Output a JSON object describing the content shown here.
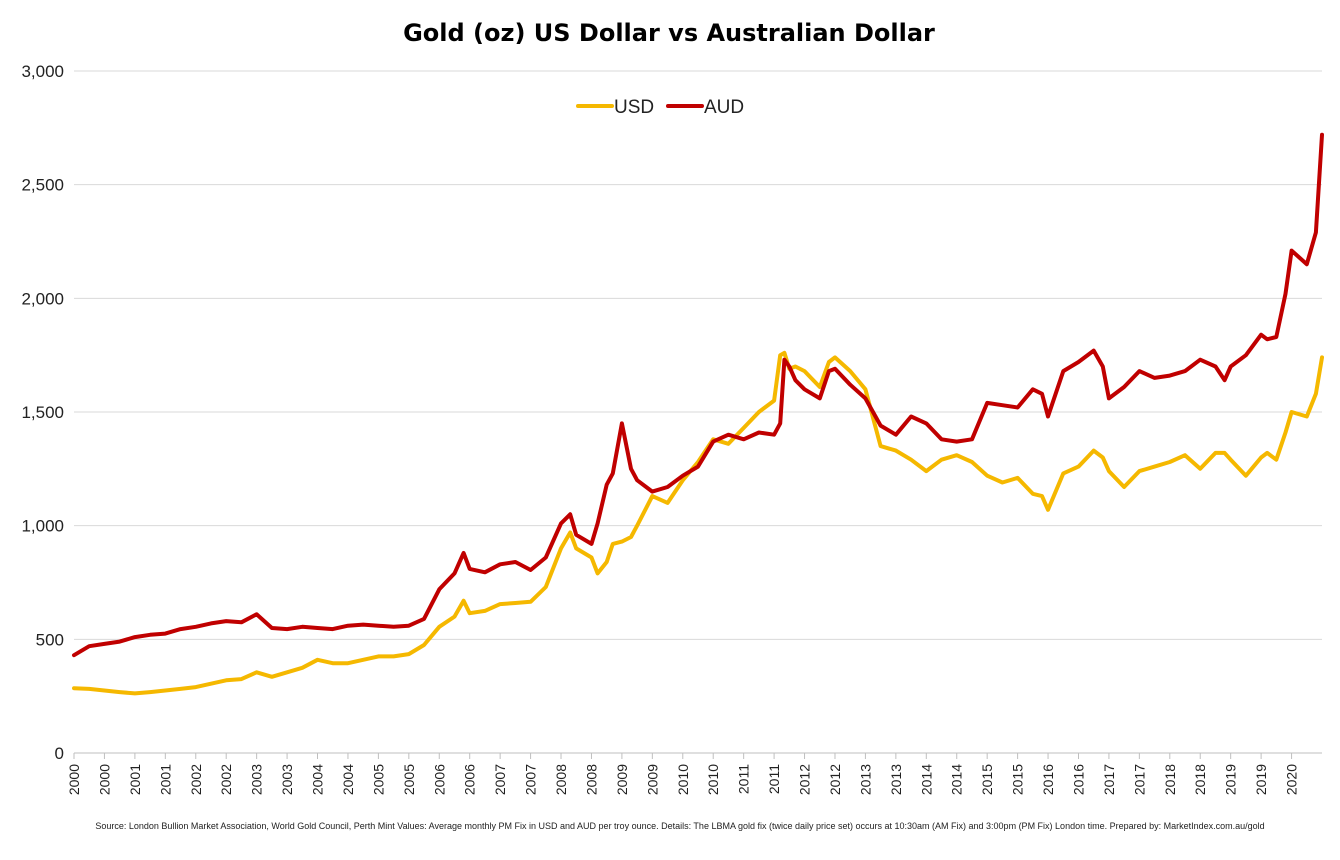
{
  "chart_data": {
    "type": "line",
    "title": "Gold (oz) US Dollar vs Australian Dollar",
    "xlabel": "",
    "ylabel": "",
    "ylim": [
      0,
      3000
    ],
    "yticks": [
      "0",
      "500",
      "1,000",
      "1,500",
      "2,000",
      "2,500",
      "3,000"
    ],
    "ytick_values": [
      0,
      500,
      1000,
      1500,
      2000,
      2500,
      3000
    ],
    "xticks": [
      "2000",
      "2000",
      "2001",
      "2001",
      "2002",
      "2002",
      "2003",
      "2003",
      "2004",
      "2004",
      "2005",
      "2005",
      "2006",
      "2006",
      "2007",
      "2007",
      "2008",
      "2008",
      "2009",
      "2009",
      "2010",
      "2010",
      "2011",
      "2011",
      "2012",
      "2012",
      "2013",
      "2013",
      "2014",
      "2014",
      "2015",
      "2015",
      "2016",
      "2016",
      "2017",
      "2017",
      "2018",
      "2018",
      "2019",
      "2019",
      "2020"
    ],
    "xtick_values": [
      2000.0,
      2000.5,
      2001.0,
      2001.5,
      2002.0,
      2002.5,
      2003.0,
      2003.5,
      2004.0,
      2004.5,
      2005.0,
      2005.5,
      2006.0,
      2006.5,
      2007.0,
      2007.5,
      2008.0,
      2008.5,
      2009.0,
      2009.5,
      2010.0,
      2010.5,
      2011.0,
      2011.5,
      2012.0,
      2012.5,
      2013.0,
      2013.5,
      2014.0,
      2014.5,
      2015.0,
      2015.5,
      2016.0,
      2016.5,
      2017.0,
      2017.5,
      2018.0,
      2018.5,
      2019.0,
      2019.5,
      2020.0
    ],
    "x_range": [
      2000.0,
      2020.5
    ],
    "grid": true,
    "legend": "top-center",
    "series": [
      {
        "name": "USD",
        "color": "#f5b800",
        "x": [
          2000.0,
          2000.25,
          2000.5,
          2000.75,
          2001.0,
          2001.25,
          2001.5,
          2001.75,
          2002.0,
          2002.25,
          2002.5,
          2002.75,
          2003.0,
          2003.25,
          2003.5,
          2003.75,
          2004.0,
          2004.25,
          2004.5,
          2004.75,
          2005.0,
          2005.25,
          2005.5,
          2005.75,
          2006.0,
          2006.25,
          2006.4,
          2006.5,
          2006.75,
          2007.0,
          2007.25,
          2007.5,
          2007.75,
          2008.0,
          2008.15,
          2008.25,
          2008.5,
          2008.6,
          2008.75,
          2008.85,
          2009.0,
          2009.15,
          2009.25,
          2009.5,
          2009.75,
          2010.0,
          2010.25,
          2010.5,
          2010.75,
          2011.0,
          2011.25,
          2011.5,
          2011.6,
          2011.67,
          2011.75,
          2011.85,
          2012.0,
          2012.25,
          2012.4,
          2012.5,
          2012.75,
          2013.0,
          2013.25,
          2013.5,
          2013.75,
          2014.0,
          2014.25,
          2014.5,
          2014.75,
          2015.0,
          2015.25,
          2015.5,
          2015.75,
          2015.9,
          2016.0,
          2016.25,
          2016.5,
          2016.75,
          2016.9,
          2017.0,
          2017.25,
          2017.5,
          2017.75,
          2018.0,
          2018.25,
          2018.5,
          2018.75,
          2018.9,
          2019.0,
          2019.25,
          2019.5,
          2019.6,
          2019.75,
          2019.9,
          2020.0,
          2020.25,
          2020.4,
          2020.5
        ],
        "values": [
          285,
          282,
          275,
          268,
          262,
          268,
          275,
          282,
          290,
          305,
          320,
          325,
          355,
          335,
          355,
          375,
          410,
          395,
          395,
          410,
          425,
          425,
          435,
          475,
          555,
          600,
          670,
          615,
          625,
          655,
          660,
          665,
          730,
          900,
          970,
          900,
          860,
          790,
          840,
          920,
          930,
          950,
          1000,
          1130,
          1100,
          1200,
          1280,
          1380,
          1360,
          1430,
          1500,
          1550,
          1750,
          1760,
          1690,
          1700,
          1680,
          1610,
          1720,
          1740,
          1680,
          1600,
          1350,
          1330,
          1290,
          1240,
          1290,
          1310,
          1280,
          1220,
          1190,
          1210,
          1140,
          1130,
          1070,
          1230,
          1260,
          1330,
          1300,
          1240,
          1170,
          1240,
          1260,
          1280,
          1310,
          1250,
          1320,
          1320,
          1290,
          1220,
          1300,
          1320,
          1290,
          1410,
          1500,
          1480,
          1580,
          1740
        ]
      },
      {
        "name": "AUD",
        "color": "#c00000",
        "x": [
          2000.0,
          2000.25,
          2000.5,
          2000.75,
          2001.0,
          2001.25,
          2001.5,
          2001.75,
          2002.0,
          2002.25,
          2002.5,
          2002.75,
          2003.0,
          2003.25,
          2003.5,
          2003.75,
          2004.0,
          2004.25,
          2004.5,
          2004.75,
          2005.0,
          2005.25,
          2005.5,
          2005.75,
          2006.0,
          2006.25,
          2006.4,
          2006.5,
          2006.75,
          2007.0,
          2007.25,
          2007.5,
          2007.75,
          2008.0,
          2008.15,
          2008.25,
          2008.5,
          2008.6,
          2008.75,
          2008.85,
          2009.0,
          2009.15,
          2009.25,
          2009.5,
          2009.75,
          2010.0,
          2010.25,
          2010.5,
          2010.75,
          2011.0,
          2011.25,
          2011.5,
          2011.6,
          2011.67,
          2011.75,
          2011.85,
          2012.0,
          2012.25,
          2012.4,
          2012.5,
          2012.75,
          2013.0,
          2013.25,
          2013.5,
          2013.75,
          2014.0,
          2014.25,
          2014.5,
          2014.75,
          2015.0,
          2015.25,
          2015.5,
          2015.75,
          2015.9,
          2016.0,
          2016.25,
          2016.5,
          2016.75,
          2016.9,
          2017.0,
          2017.25,
          2017.5,
          2017.75,
          2018.0,
          2018.25,
          2018.5,
          2018.75,
          2018.9,
          2019.0,
          2019.25,
          2019.5,
          2019.6,
          2019.75,
          2019.9,
          2020.0,
          2020.25,
          2020.4,
          2020.5
        ],
        "values": [
          430,
          470,
          480,
          490,
          510,
          520,
          525,
          545,
          555,
          570,
          580,
          575,
          610,
          550,
          545,
          555,
          550,
          545,
          560,
          565,
          560,
          555,
          560,
          590,
          720,
          790,
          880,
          810,
          795,
          830,
          840,
          805,
          860,
          1010,
          1050,
          960,
          920,
          1010,
          1180,
          1230,
          1450,
          1250,
          1200,
          1150,
          1170,
          1220,
          1260,
          1370,
          1400,
          1380,
          1410,
          1400,
          1450,
          1730,
          1700,
          1640,
          1600,
          1560,
          1680,
          1690,
          1620,
          1560,
          1440,
          1400,
          1480,
          1450,
          1380,
          1370,
          1380,
          1540,
          1530,
          1520,
          1600,
          1580,
          1480,
          1680,
          1720,
          1770,
          1700,
          1560,
          1610,
          1680,
          1650,
          1660,
          1680,
          1730,
          1700,
          1640,
          1700,
          1750,
          1840,
          1820,
          1830,
          2020,
          2210,
          2150,
          2290,
          2720
        ]
      }
    ],
    "source": "Source: London Bullion Market Association, World Gold Council, Perth Mint Values: Average monthly PM Fix in USD and AUD per troy ounce. Details: The LBMA gold fix (twice daily price set) occurs at 10:30am (AM Fix) and 3:00pm (PM Fix) London time. Prepared by: MarketIndex.com.au/gold"
  }
}
